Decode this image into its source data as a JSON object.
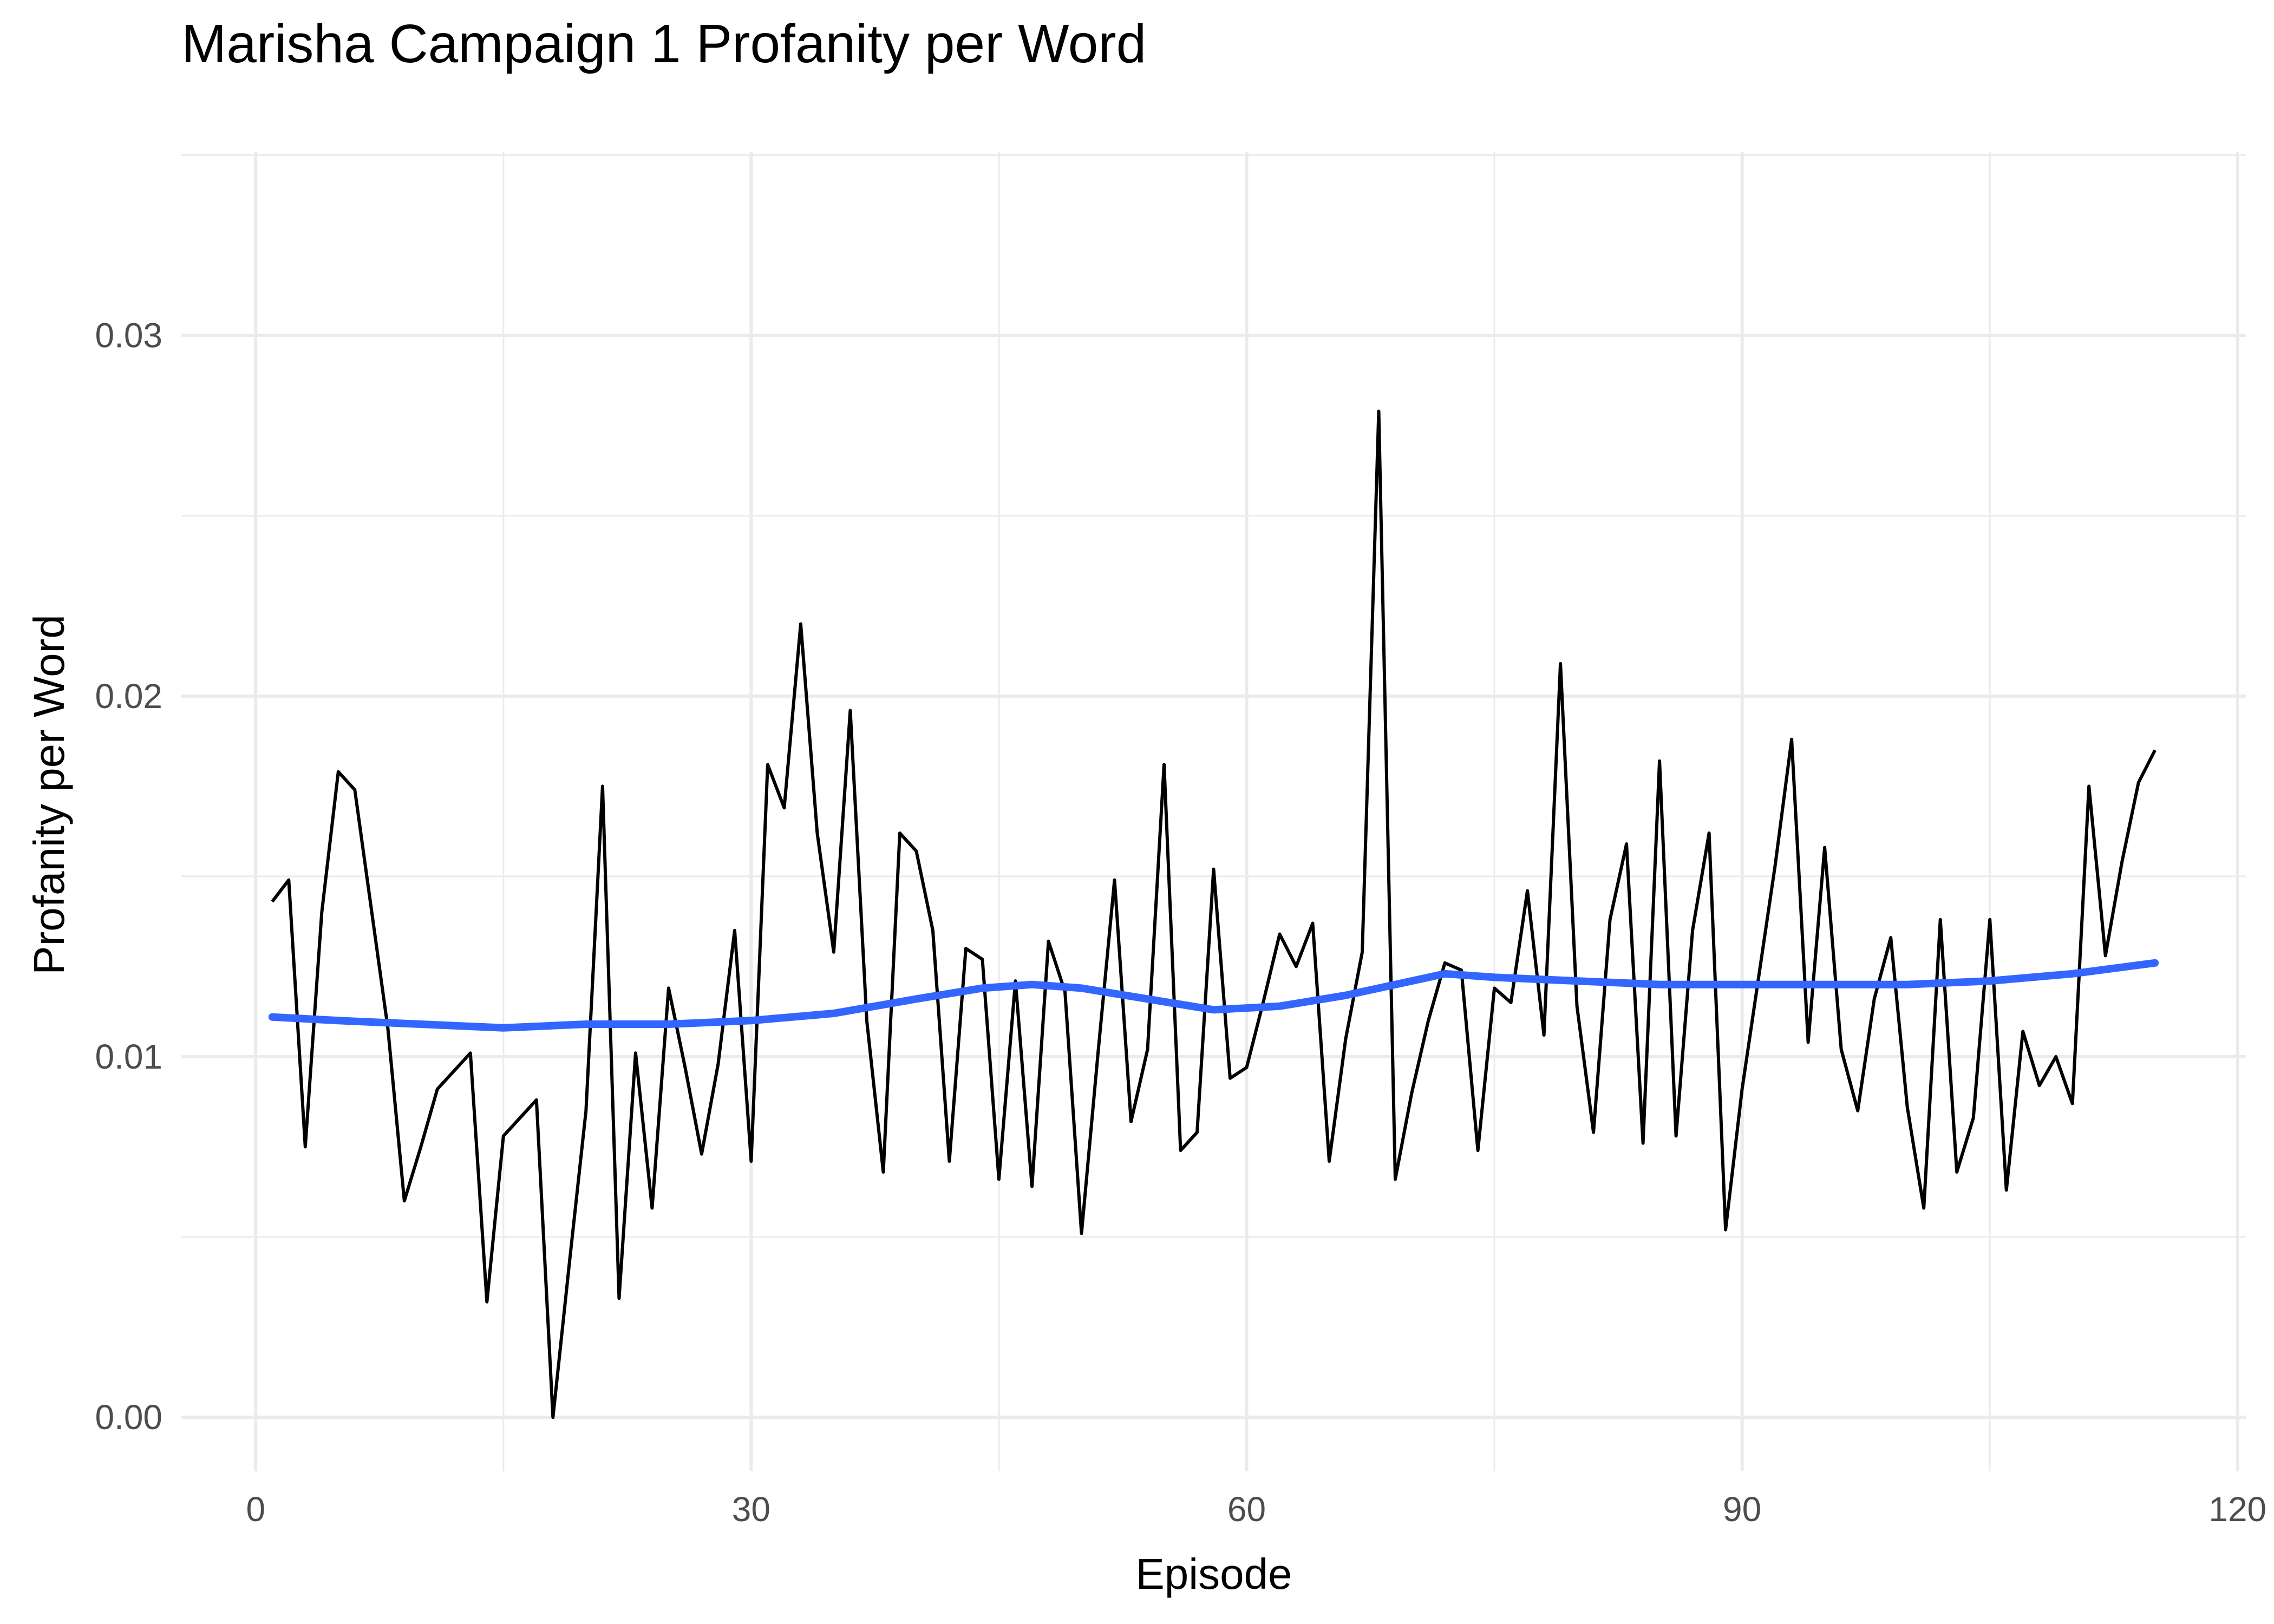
{
  "chart_data": {
    "type": "line",
    "title": "Marisha Campaign 1 Profanity per Word",
    "xlabel": "Episode",
    "ylabel": "Profanity per Word",
    "xlim": [
      -4.5,
      120.5
    ],
    "ylim": [
      -0.0015,
      0.0351
    ],
    "xticks": [
      0,
      30,
      60,
      90,
      120
    ],
    "xtick_labels": [
      "0",
      "30",
      "60",
      "90",
      "120"
    ],
    "yticks": [
      0.0,
      0.01,
      0.02,
      0.03
    ],
    "ytick_labels": [
      "0.00",
      "0.01",
      "0.02",
      "0.03"
    ],
    "grid": true,
    "legend": "none",
    "series": [
      {
        "kind": "line",
        "color": "#000000",
        "x": [
          1,
          2,
          3,
          4,
          5,
          6,
          7,
          8,
          9,
          10,
          11,
          12,
          13,
          14,
          15,
          16,
          17,
          18,
          19,
          20,
          21,
          22,
          23,
          24,
          25,
          26,
          27,
          28,
          29,
          30,
          31,
          32,
          33,
          34,
          35,
          36,
          37,
          38,
          39,
          40,
          41,
          42,
          43,
          44,
          45,
          46,
          47,
          48,
          49,
          50,
          51,
          52,
          53,
          54,
          55,
          56,
          57,
          58,
          59,
          60,
          61,
          62,
          63,
          64,
          65,
          66,
          67,
          68,
          69,
          70,
          71,
          72,
          73,
          74,
          75,
          76,
          77,
          78,
          79,
          80,
          81,
          82,
          83,
          84,
          85,
          86,
          87,
          88,
          89,
          90,
          91,
          92,
          93,
          94,
          95,
          96,
          97,
          98,
          99,
          100,
          101,
          102,
          103,
          104,
          105,
          106,
          107,
          108,
          109,
          110,
          111,
          112,
          113,
          114,
          115
        ],
        "y": [
          0.0143,
          0.0149,
          0.0075,
          0.014,
          0.0179,
          0.0174,
          0.0141,
          0.0108,
          0.006,
          0.0075,
          0.0091,
          0.0096,
          0.0101,
          0.0032,
          0.0078,
          0.0083,
          0.0088,
          0.0,
          0.0043,
          0.0085,
          0.0175,
          0.0033,
          0.0101,
          0.0058,
          0.0119,
          0.0097,
          0.0073,
          0.0098,
          0.0135,
          0.0071,
          0.0181,
          0.0169,
          0.022,
          0.0162,
          0.0129,
          0.0196,
          0.011,
          0.0068,
          0.0162,
          0.0157,
          0.0135,
          0.0071,
          0.013,
          0.0127,
          0.0066,
          0.0121,
          0.0064,
          0.0132,
          0.0118,
          0.0051,
          0.0101,
          0.0149,
          0.0082,
          0.0102,
          0.0181,
          0.0074,
          0.0079,
          0.0152,
          0.0094,
          0.0097,
          0.0115,
          0.0134,
          0.0125,
          0.0137,
          0.0071,
          0.0105,
          0.0129,
          0.0279,
          0.0066,
          0.009,
          0.011,
          0.0126,
          0.0124,
          0.0074,
          0.0119,
          0.0115,
          0.0146,
          0.0106,
          0.0209,
          0.0114,
          0.0079,
          0.0138,
          0.0159,
          0.0076,
          0.0182,
          0.0078,
          0.0135,
          0.0162,
          0.0052,
          0.0091,
          0.0122,
          0.0153,
          0.0188,
          0.0104,
          0.0158,
          0.0102,
          0.0085,
          0.0116,
          0.0133,
          0.0086,
          0.0058,
          0.0138,
          0.0068,
          0.0083,
          0.0138,
          0.0063,
          0.0107,
          0.0092,
          0.01,
          0.0087,
          0.0175,
          0.0128,
          0.0154,
          0.0176,
          0.0185
        ]
      },
      {
        "kind": "smooth",
        "color": "#3366ff",
        "x": [
          1,
          5,
          10,
          15,
          20,
          25,
          30,
          35,
          40,
          44,
          47,
          50,
          54,
          58,
          62,
          66,
          70,
          72,
          75,
          80,
          85,
          90,
          95,
          100,
          105,
          110,
          115
        ],
        "y": [
          0.0111,
          0.011,
          0.0109,
          0.0108,
          0.0109,
          0.0109,
          0.011,
          0.0112,
          0.0116,
          0.0119,
          0.012,
          0.0119,
          0.0116,
          0.0113,
          0.0114,
          0.0117,
          0.0121,
          0.0123,
          0.0122,
          0.0121,
          0.012,
          0.012,
          0.012,
          0.012,
          0.0121,
          0.0123,
          0.0126
        ]
      }
    ]
  }
}
